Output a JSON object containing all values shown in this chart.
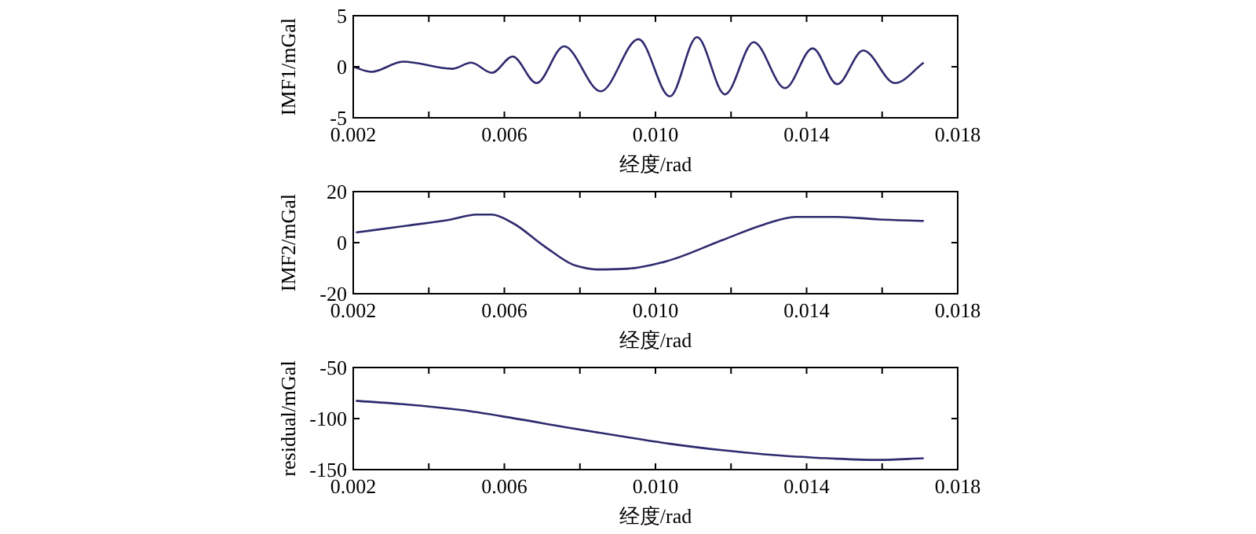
{
  "chart_data": [
    {
      "type": "line",
      "xlabel": "经度/rad",
      "ylabel": "IMF1/mGal",
      "xlim": [
        0.002,
        0.018
      ],
      "xticks": [
        {
          "value": 0.002,
          "label": "0.002"
        },
        {
          "value": 0.004,
          "label": null
        },
        {
          "value": 0.006,
          "label": "0.006"
        },
        {
          "value": 0.008,
          "label": null
        },
        {
          "value": 0.01,
          "label": "0.010"
        },
        {
          "value": 0.012,
          "label": null
        },
        {
          "value": 0.014,
          "label": "0.014"
        },
        {
          "value": 0.016,
          "label": null
        },
        {
          "value": 0.018,
          "label": "0.018"
        }
      ],
      "ylim": [
        -5,
        5
      ],
      "yticks": [
        -5,
        0,
        5
      ],
      "x": [
        0.002,
        0.00248,
        0.00332,
        0.00463,
        0.00512,
        0.00567,
        0.00622,
        0.00685,
        0.00758,
        0.00855,
        0.00955,
        0.01038,
        0.0111,
        0.01184,
        0.0126,
        0.01343,
        0.01416,
        0.01481,
        0.0155,
        0.01634,
        0.0171
      ],
      "series": [
        {
          "color": "#2e2a6e",
          "values": [
            0,
            -0.5,
            0.5,
            -0.2,
            0.4,
            -0.6,
            1.0,
            -1.6,
            2.0,
            -2.4,
            2.7,
            -2.9,
            2.9,
            -2.7,
            2.4,
            -2.1,
            1.8,
            -1.7,
            1.6,
            -1.6,
            0.4
          ]
        }
      ]
    },
    {
      "type": "line",
      "xlabel": "经度/rad",
      "ylabel": "IMF2/mGal",
      "xlim": [
        0.002,
        0.018
      ],
      "xticks": [
        {
          "value": 0.002,
          "label": "0.002"
        },
        {
          "value": 0.004,
          "label": null
        },
        {
          "value": 0.006,
          "label": "0.006"
        },
        {
          "value": 0.008,
          "label": null
        },
        {
          "value": 0.01,
          "label": "0.010"
        },
        {
          "value": 0.012,
          "label": null
        },
        {
          "value": 0.014,
          "label": "0.014"
        },
        {
          "value": 0.016,
          "label": null
        },
        {
          "value": 0.018,
          "label": "0.018"
        }
      ],
      "ylim": [
        -20,
        20
      ],
      "yticks": [
        -20,
        0,
        20
      ],
      "x": [
        0.00207,
        0.00345,
        0.00456,
        0.00526,
        0.00567,
        0.00622,
        0.00706,
        0.00789,
        0.00844,
        0.00927,
        0.01024,
        0.01177,
        0.01287,
        0.0137,
        0.01481,
        0.01592,
        0.0171
      ],
      "series": [
        {
          "color": "#2e2a6e",
          "values": [
            4,
            6.7,
            9,
            11,
            11,
            7.7,
            -1.4,
            -9,
            -10.5,
            -10.2,
            -7.5,
            1,
            7.1,
            10.1,
            10.1,
            9.1,
            8.5
          ]
        }
      ]
    },
    {
      "type": "line",
      "xlabel": "经度/rad",
      "ylabel": "residual/mGal",
      "xlim": [
        0.002,
        0.018
      ],
      "xticks": [
        {
          "value": 0.002,
          "label": "0.002"
        },
        {
          "value": 0.004,
          "label": null
        },
        {
          "value": 0.006,
          "label": "0.006"
        },
        {
          "value": 0.008,
          "label": null
        },
        {
          "value": 0.01,
          "label": "0.010"
        },
        {
          "value": 0.012,
          "label": null
        },
        {
          "value": 0.014,
          "label": "0.014"
        },
        {
          "value": 0.016,
          "label": null
        },
        {
          "value": 0.018,
          "label": "0.018"
        }
      ],
      "ylim": [
        -150,
        -50
      ],
      "yticks": [
        -150,
        -100,
        -50
      ],
      "x": [
        0.00207,
        0.00345,
        0.00484,
        0.00622,
        0.00761,
        0.009,
        0.01038,
        0.01177,
        0.01315,
        0.01454,
        0.01592,
        0.0171
      ],
      "series": [
        {
          "color": "#2e2a6e",
          "values": [
            -82.6,
            -86.3,
            -91.6,
            -99.5,
            -108.4,
            -116.8,
            -124.7,
            -131,
            -135.8,
            -138.9,
            -140.5,
            -138.9
          ]
        }
      ]
    }
  ]
}
